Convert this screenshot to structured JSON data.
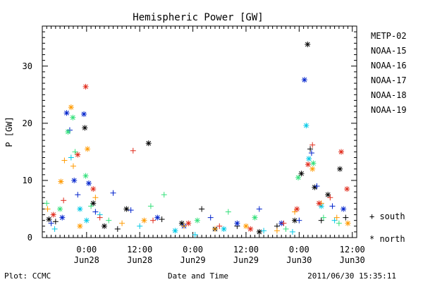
{
  "chart_data": {
    "type": "scatter",
    "title": "Hemispheric Power [GW]",
    "xlabel": "Date and Time",
    "ylabel": "P [GW]",
    "x_unit": "hours since 2011-06-27 00:00 UT",
    "xlim": [
      14,
      85
    ],
    "ylim": [
      0,
      37
    ],
    "y_ticks": [
      0,
      10,
      20,
      30
    ],
    "x_ticks": [
      {
        "x": 24,
        "time": "0:00",
        "date": "Jun28"
      },
      {
        "x": 36,
        "time": "12:00",
        "date": "Jun28"
      },
      {
        "x": 48,
        "time": "0:00",
        "date": "Jun29"
      },
      {
        "x": 60,
        "time": "12:00",
        "date": "Jun29"
      },
      {
        "x": 72,
        "time": "0:00",
        "date": "Jun30"
      },
      {
        "x": 84,
        "time": "12:00",
        "date": "Jun30"
      }
    ],
    "grid": false,
    "legend_position": "right",
    "marker_legend": [
      {
        "symbol": "+",
        "label": "south"
      },
      {
        "symbol": "*",
        "label": "north"
      }
    ],
    "series": [
      {
        "name": "METP-02",
        "color": "#000000",
        "points": [
          {
            "x": 15.5,
            "y": 3.2,
            "m": "star"
          },
          {
            "x": 17.0,
            "y": 2.8,
            "m": "plus"
          },
          {
            "x": 23.6,
            "y": 19.2,
            "m": "star"
          },
          {
            "x": 25.5,
            "y": 6.0,
            "m": "star"
          },
          {
            "x": 28.0,
            "y": 2.0,
            "m": "star"
          },
          {
            "x": 31.0,
            "y": 1.5,
            "m": "plus"
          },
          {
            "x": 33.0,
            "y": 5.0,
            "m": "star"
          },
          {
            "x": 38.0,
            "y": 16.5,
            "m": "star"
          },
          {
            "x": 41.0,
            "y": 3.2,
            "m": "plus"
          },
          {
            "x": 45.5,
            "y": 2.5,
            "m": "star"
          },
          {
            "x": 50.0,
            "y": 5.0,
            "m": "plus"
          },
          {
            "x": 53.0,
            "y": 1.5,
            "m": "star"
          },
          {
            "x": 58.0,
            "y": 2.0,
            "m": "plus"
          },
          {
            "x": 63.0,
            "y": 1.0,
            "m": "star"
          },
          {
            "x": 67.0,
            "y": 2.0,
            "m": "plus"
          },
          {
            "x": 71.0,
            "y": 3.0,
            "m": "star"
          },
          {
            "x": 72.5,
            "y": 11.2,
            "m": "star"
          },
          {
            "x": 73.9,
            "y": 33.8,
            "m": "star"
          },
          {
            "x": 74.5,
            "y": 15.5,
            "m": "plus"
          },
          {
            "x": 75.5,
            "y": 8.8,
            "m": "star"
          },
          {
            "x": 77.0,
            "y": 3.0,
            "m": "plus"
          },
          {
            "x": 78.5,
            "y": 7.5,
            "m": "star"
          },
          {
            "x": 81.2,
            "y": 12.0,
            "m": "star"
          },
          {
            "x": 82.5,
            "y": 3.5,
            "m": "plus"
          }
        ]
      },
      {
        "name": "NOAA-15",
        "color": "#0022cc",
        "points": [
          {
            "x": 16.0,
            "y": 2.5,
            "m": "plus"
          },
          {
            "x": 18.5,
            "y": 3.5,
            "m": "star"
          },
          {
            "x": 19.5,
            "y": 21.8,
            "m": "star"
          },
          {
            "x": 20.2,
            "y": 18.8,
            "m": "plus"
          },
          {
            "x": 21.2,
            "y": 10.0,
            "m": "star"
          },
          {
            "x": 22.0,
            "y": 7.5,
            "m": "plus"
          },
          {
            "x": 23.4,
            "y": 21.6,
            "m": "star"
          },
          {
            "x": 24.5,
            "y": 9.5,
            "m": "star"
          },
          {
            "x": 26.0,
            "y": 4.5,
            "m": "plus"
          },
          {
            "x": 30.0,
            "y": 7.8,
            "m": "plus"
          },
          {
            "x": 34.0,
            "y": 4.8,
            "m": "plus"
          },
          {
            "x": 40.0,
            "y": 3.5,
            "m": "star"
          },
          {
            "x": 46.0,
            "y": 2.0,
            "m": "star"
          },
          {
            "x": 52.0,
            "y": 3.5,
            "m": "plus"
          },
          {
            "x": 58.0,
            "y": 2.5,
            "m": "star"
          },
          {
            "x": 63.0,
            "y": 5.0,
            "m": "plus"
          },
          {
            "x": 68.0,
            "y": 2.5,
            "m": "star"
          },
          {
            "x": 72.0,
            "y": 3.0,
            "m": "plus"
          },
          {
            "x": 73.2,
            "y": 27.6,
            "m": "star"
          },
          {
            "x": 74.8,
            "y": 14.8,
            "m": "plus"
          },
          {
            "x": 76.0,
            "y": 9.0,
            "m": "plus"
          },
          {
            "x": 79.5,
            "y": 5.5,
            "m": "plus"
          },
          {
            "x": 82.0,
            "y": 5.0,
            "m": "star"
          }
        ]
      },
      {
        "name": "NOAA-16",
        "color": "#00c8e6",
        "points": [
          {
            "x": 16.8,
            "y": 1.5,
            "m": "plus"
          },
          {
            "x": 20.5,
            "y": 14.0,
            "m": "plus"
          },
          {
            "x": 22.5,
            "y": 5.0,
            "m": "star"
          },
          {
            "x": 24.0,
            "y": 3.0,
            "m": "star"
          },
          {
            "x": 27.0,
            "y": 4.0,
            "m": "plus"
          },
          {
            "x": 36.0,
            "y": 2.0,
            "m": "plus"
          },
          {
            "x": 44.0,
            "y": 1.2,
            "m": "star"
          },
          {
            "x": 48.5,
            "y": 0.5,
            "m": "plus"
          },
          {
            "x": 55.0,
            "y": 1.5,
            "m": "star"
          },
          {
            "x": 64.0,
            "y": 1.2,
            "m": "plus"
          },
          {
            "x": 70.5,
            "y": 1.0,
            "m": "plus"
          },
          {
            "x": 73.6,
            "y": 19.6,
            "m": "star"
          },
          {
            "x": 74.2,
            "y": 13.8,
            "m": "star"
          },
          {
            "x": 77.0,
            "y": 5.5,
            "m": "star"
          },
          {
            "x": 80.0,
            "y": 3.0,
            "m": "plus"
          }
        ]
      },
      {
        "name": "NOAA-17",
        "color": "#33e07a",
        "points": [
          {
            "x": 15.0,
            "y": 6.0,
            "m": "plus"
          },
          {
            "x": 18.0,
            "y": 5.0,
            "m": "star"
          },
          {
            "x": 19.8,
            "y": 18.5,
            "m": "star"
          },
          {
            "x": 20.9,
            "y": 21.0,
            "m": "star"
          },
          {
            "x": 21.4,
            "y": 15.0,
            "m": "plus"
          },
          {
            "x": 23.8,
            "y": 10.8,
            "m": "star"
          },
          {
            "x": 25.0,
            "y": 5.5,
            "m": "plus"
          },
          {
            "x": 29.0,
            "y": 3.0,
            "m": "plus"
          },
          {
            "x": 38.5,
            "y": 5.5,
            "m": "plus"
          },
          {
            "x": 41.5,
            "y": 7.5,
            "m": "plus"
          },
          {
            "x": 49.0,
            "y": 3.0,
            "m": "star"
          },
          {
            "x": 56.0,
            "y": 4.5,
            "m": "plus"
          },
          {
            "x": 62.0,
            "y": 3.5,
            "m": "star"
          },
          {
            "x": 69.0,
            "y": 1.5,
            "m": "plus"
          },
          {
            "x": 71.8,
            "y": 10.5,
            "m": "star"
          },
          {
            "x": 75.2,
            "y": 13.0,
            "m": "star"
          },
          {
            "x": 77.5,
            "y": 3.5,
            "m": "plus"
          },
          {
            "x": 81.0,
            "y": 2.5,
            "m": "plus"
          }
        ]
      },
      {
        "name": "NOAA-18",
        "color": "#ff9a00",
        "points": [
          {
            "x": 15.2,
            "y": 5.0,
            "m": "plus"
          },
          {
            "x": 18.2,
            "y": 9.8,
            "m": "star"
          },
          {
            "x": 19.0,
            "y": 13.5,
            "m": "plus"
          },
          {
            "x": 20.5,
            "y": 22.8,
            "m": "star"
          },
          {
            "x": 21.0,
            "y": 12.5,
            "m": "plus"
          },
          {
            "x": 22.5,
            "y": 2.0,
            "m": "star"
          },
          {
            "x": 24.2,
            "y": 15.5,
            "m": "star"
          },
          {
            "x": 26.0,
            "y": 7.0,
            "m": "plus"
          },
          {
            "x": 32.0,
            "y": 2.5,
            "m": "plus"
          },
          {
            "x": 37.0,
            "y": 3.0,
            "m": "star"
          },
          {
            "x": 46.0,
            "y": 2.0,
            "m": "plus"
          },
          {
            "x": 53.0,
            "y": 1.5,
            "m": "plus"
          },
          {
            "x": 60.0,
            "y": 2.0,
            "m": "star"
          },
          {
            "x": 67.0,
            "y": 1.2,
            "m": "plus"
          },
          {
            "x": 71.0,
            "y": 4.5,
            "m": "plus"
          },
          {
            "x": 75.0,
            "y": 12.0,
            "m": "star"
          },
          {
            "x": 77.0,
            "y": 6.0,
            "m": "plus"
          },
          {
            "x": 80.5,
            "y": 3.5,
            "m": "plus"
          },
          {
            "x": 83.0,
            "y": 2.5,
            "m": "star"
          }
        ]
      },
      {
        "name": "NOAA-19",
        "color": "#e02a1a",
        "points": [
          {
            "x": 16.5,
            "y": 4.0,
            "m": "star"
          },
          {
            "x": 18.8,
            "y": 6.5,
            "m": "plus"
          },
          {
            "x": 22.0,
            "y": 14.5,
            "m": "star"
          },
          {
            "x": 23.8,
            "y": 26.4,
            "m": "star"
          },
          {
            "x": 25.5,
            "y": 8.5,
            "m": "star"
          },
          {
            "x": 27.0,
            "y": 3.5,
            "m": "plus"
          },
          {
            "x": 34.5,
            "y": 15.2,
            "m": "plus"
          },
          {
            "x": 39.0,
            "y": 3.0,
            "m": "plus"
          },
          {
            "x": 47.0,
            "y": 2.5,
            "m": "star"
          },
          {
            "x": 54.0,
            "y": 2.0,
            "m": "plus"
          },
          {
            "x": 61.0,
            "y": 1.5,
            "m": "star"
          },
          {
            "x": 68.5,
            "y": 2.5,
            "m": "plus"
          },
          {
            "x": 71.5,
            "y": 5.0,
            "m": "star"
          },
          {
            "x": 74.0,
            "y": 12.8,
            "m": "star"
          },
          {
            "x": 75.0,
            "y": 16.2,
            "m": "plus"
          },
          {
            "x": 76.5,
            "y": 6.0,
            "m": "star"
          },
          {
            "x": 79.0,
            "y": 7.0,
            "m": "plus"
          },
          {
            "x": 81.5,
            "y": 15.0,
            "m": "star"
          },
          {
            "x": 82.8,
            "y": 8.5,
            "m": "star"
          }
        ]
      }
    ]
  },
  "footer": {
    "left": "Plot: CCMC",
    "center": "Date and Time",
    "right": "2011/06/30 15:35:11"
  }
}
